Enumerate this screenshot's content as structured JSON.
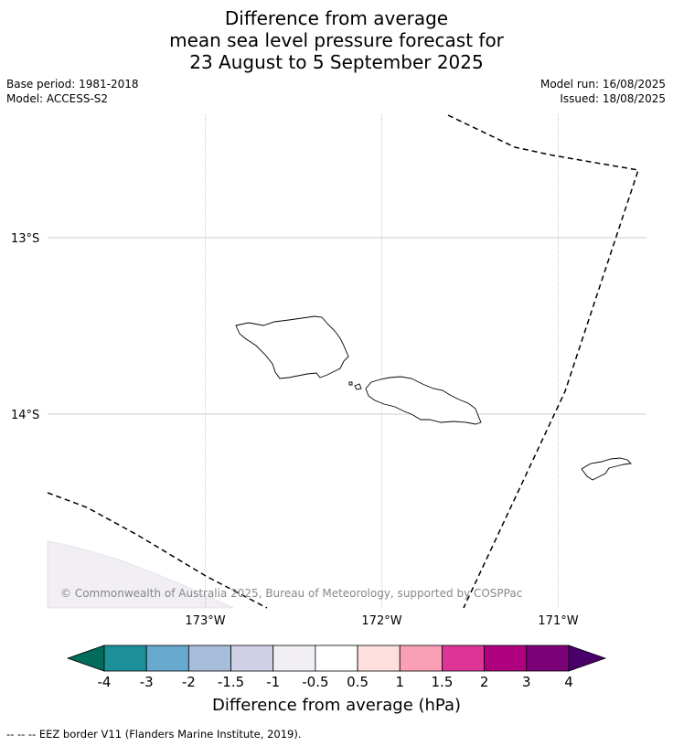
{
  "title": {
    "line1": "Difference from average",
    "line2": "mean sea level pressure forecast for",
    "line3": "23 August to 5 September 2025"
  },
  "meta": {
    "base_period": "Base period: 1981-2018",
    "model": "Model: ACCESS-S2",
    "model_run": "Model run: 16/08/2025",
    "issued": "Issued: 18/08/2025"
  },
  "map": {
    "lat_labels": [
      "13°S",
      "14°S"
    ],
    "lon_labels": [
      "173°W",
      "172°W",
      "171°W"
    ],
    "copyright": "© Commonwealth of Australia 2025, Bureau of Meteorology, supported by COSPPac",
    "shading_color": "#f1eef4",
    "eez_color": "#000000"
  },
  "colorbar": {
    "label": "Difference from average (hPa)",
    "ticks": [
      "-4",
      "-3",
      "-2",
      "-1.5",
      "-1",
      "-0.5",
      "0.5",
      "1",
      "1.5",
      "2",
      "3",
      "4"
    ],
    "colors": [
      "#016c59",
      "#1c9099",
      "#67a9cf",
      "#a6bddb",
      "#d0d1e6",
      "#f1eef4",
      "#ffffff",
      "#fde0dd",
      "#fa9fb5",
      "#dd3497",
      "#ae017e",
      "#7a0177",
      "#49006a"
    ]
  },
  "footer": "--  --  -- EEZ border V11 (Flanders Marine Institute, 2019)."
}
